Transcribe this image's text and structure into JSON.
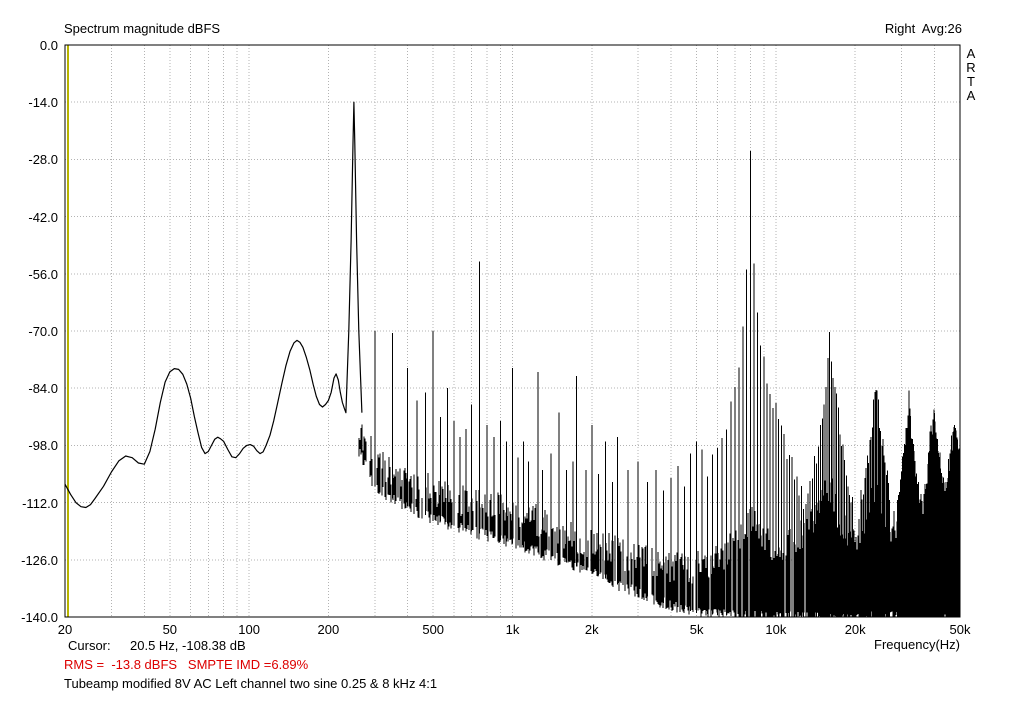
{
  "header": {
    "title": "Spectrum magnitude dBFS",
    "channel_avg": "Right  Avg:26"
  },
  "watermark": {
    "letters": [
      "A",
      "R",
      "T",
      "A"
    ]
  },
  "status": {
    "cursor_label": "Cursor:",
    "cursor_value": "20.5 Hz, -108.38 dB",
    "rms_line": "RMS =  -13.8 dBFS   SMPTE IMD =6.89%",
    "note": "Tubeamp modified 8V AC Left channel two sine 0.25 & 8 kHz 4:1",
    "freq_axis_label": "Frequency(Hz)"
  },
  "colors": {
    "accent_red": "#dd0000",
    "cursor_yellow": "#b8b400",
    "grid": "#b3b3b3",
    "trace": "#000000",
    "border": "#000000"
  },
  "chart_data": {
    "type": "line",
    "title": "Spectrum magnitude dBFS",
    "xlabel": "Frequency(Hz)",
    "ylabel": "dBFS",
    "x_scale": "log",
    "xlim": [
      20,
      50000
    ],
    "ylim": [
      -140,
      0
    ],
    "grid": true,
    "channel": "Right",
    "averages": 26,
    "cursor": {
      "freq_hz": 20.5,
      "level_db": -108.38
    },
    "rms_dbfs": -13.8,
    "smpte_imd_percent": 6.89,
    "y_ticks": [
      0,
      -14,
      -28,
      -42,
      -56,
      -70,
      -84,
      -98,
      -112,
      -126,
      -140
    ],
    "y_tick_labels": [
      "0.0",
      "-14.0",
      "-28.0",
      "-42.0",
      "-56.0",
      "-70.0",
      "-84.0",
      "-98.0",
      "-112.0",
      "-126.0",
      "-140.0"
    ],
    "x_ticks": [
      20,
      50,
      100,
      200,
      500,
      1000,
      2000,
      5000,
      10000,
      20000,
      50000
    ],
    "x_tick_labels": [
      "20",
      "50",
      "100",
      "200",
      "500",
      "1k",
      "2k",
      "5k",
      "10k",
      "20k",
      "50k"
    ],
    "main_tones": [
      [
        250,
        -14
      ],
      [
        8000,
        -26
      ]
    ],
    "low_freq_curve": [
      [
        20,
        -107.5
      ],
      [
        21,
        -110
      ],
      [
        22,
        -112
      ],
      [
        23,
        -113
      ],
      [
        24,
        -113.2
      ],
      [
        25,
        -112.5
      ],
      [
        26,
        -111
      ],
      [
        28,
        -108
      ],
      [
        30,
        -104.5
      ],
      [
        32,
        -101.8
      ],
      [
        34,
        -100.6
      ],
      [
        36,
        -101
      ],
      [
        38,
        -102.3
      ],
      [
        40,
        -102.6
      ],
      [
        42,
        -99.5
      ],
      [
        44,
        -94
      ],
      [
        46,
        -87.5
      ],
      [
        48,
        -82.5
      ],
      [
        50,
        -80
      ],
      [
        52,
        -79.2
      ],
      [
        54,
        -79.4
      ],
      [
        56,
        -80.6
      ],
      [
        58,
        -83
      ],
      [
        60,
        -86.5
      ],
      [
        62,
        -91
      ],
      [
        64,
        -95
      ],
      [
        66,
        -98.5
      ],
      [
        68,
        -100
      ],
      [
        70,
        -99.5
      ],
      [
        72,
        -98
      ],
      [
        74,
        -96.5
      ],
      [
        76,
        -96
      ],
      [
        78,
        -96.4
      ],
      [
        80,
        -97
      ],
      [
        83,
        -99
      ],
      [
        86,
        -100.8
      ],
      [
        89,
        -101
      ],
      [
        92,
        -100
      ],
      [
        95,
        -98.7
      ],
      [
        98,
        -98
      ],
      [
        101,
        -97.8
      ],
      [
        104,
        -98.2
      ],
      [
        107,
        -99.3
      ],
      [
        110,
        -100
      ],
      [
        113,
        -99.6
      ],
      [
        116,
        -98
      ],
      [
        120,
        -95.5
      ],
      [
        124,
        -92
      ],
      [
        128,
        -88
      ],
      [
        133,
        -83
      ],
      [
        138,
        -78.5
      ],
      [
        143,
        -75
      ],
      [
        148,
        -72.9
      ],
      [
        152,
        -72.3
      ],
      [
        156,
        -72.8
      ],
      [
        160,
        -74
      ],
      [
        165,
        -76.5
      ],
      [
        170,
        -79.5
      ],
      [
        175,
        -83
      ],
      [
        180,
        -86
      ],
      [
        185,
        -88
      ],
      [
        190,
        -88.6
      ],
      [
        195,
        -88
      ],
      [
        200,
        -87
      ],
      [
        205,
        -85
      ],
      [
        210,
        -81.5
      ],
      [
        214,
        -80.5
      ],
      [
        218,
        -82
      ],
      [
        222,
        -85
      ],
      [
        226,
        -87.5
      ],
      [
        230,
        -89
      ],
      [
        233,
        -90
      ],
      [
        239,
        -70
      ],
      [
        244,
        -48
      ],
      [
        248,
        -24
      ],
      [
        250,
        -14
      ],
      [
        252,
        -24
      ],
      [
        256,
        -48
      ],
      [
        261,
        -70
      ],
      [
        268,
        -90
      ]
    ],
    "spikes": [
      [
        300,
        -70
      ],
      [
        350,
        -70.5
      ],
      [
        400,
        -79
      ],
      [
        433,
        -87
      ],
      [
        467,
        -85
      ],
      [
        500,
        -70
      ],
      [
        533,
        -91
      ],
      [
        567,
        -84
      ],
      [
        600,
        -92
      ],
      [
        633,
        -96
      ],
      [
        667,
        -94
      ],
      [
        700,
        -88
      ],
      [
        750,
        -53
      ],
      [
        800,
        -93
      ],
      [
        850,
        -96
      ],
      [
        900,
        -92
      ],
      [
        950,
        -97
      ],
      [
        1000,
        -79
      ],
      [
        1050,
        -101
      ],
      [
        1100,
        -97
      ],
      [
        1150,
        -102
      ],
      [
        1250,
        -80
      ],
      [
        1300,
        -104
      ],
      [
        1400,
        -100
      ],
      [
        1500,
        -90
      ],
      [
        1600,
        -104
      ],
      [
        1700,
        -102
      ],
      [
        1750,
        -81
      ],
      [
        1900,
        -104
      ],
      [
        2000,
        -93
      ],
      [
        2125,
        -105
      ],
      [
        2250,
        -97
      ],
      [
        2400,
        -107
      ],
      [
        2500,
        -96
      ],
      [
        2750,
        -104
      ],
      [
        3000,
        -102
      ],
      [
        3250,
        -107
      ],
      [
        3500,
        -104
      ],
      [
        3750,
        -109
      ],
      [
        4000,
        -106
      ],
      [
        4250,
        -103
      ],
      [
        4500,
        -108
      ],
      [
        4750,
        -100
      ],
      [
        5000,
        -97
      ],
      [
        5250,
        -99
      ]
    ],
    "noise_floor_top": [
      [
        260,
        -93
      ],
      [
        300,
        -101
      ],
      [
        350,
        -105
      ],
      [
        400,
        -107
      ],
      [
        500,
        -109
      ],
      [
        600,
        -111
      ],
      [
        700,
        -112
      ],
      [
        800,
        -113
      ],
      [
        900,
        -113.5
      ],
      [
        1000,
        -114
      ],
      [
        1200,
        -116
      ],
      [
        1500,
        -119
      ],
      [
        2000,
        -122
      ],
      [
        2500,
        -124
      ],
      [
        3000,
        -126
      ],
      [
        4000,
        -128
      ],
      [
        5000,
        -128
      ],
      [
        6000,
        -126
      ],
      [
        7000,
        -122
      ],
      [
        8000,
        -116
      ],
      [
        9000,
        -121
      ],
      [
        10000,
        -123
      ],
      [
        11000,
        -122
      ],
      [
        12000,
        -121
      ],
      [
        13000,
        -119
      ],
      [
        14000,
        -116
      ],
      [
        15000,
        -112
      ],
      [
        16000,
        -108
      ],
      [
        17000,
        -114
      ],
      [
        18000,
        -118
      ],
      [
        19000,
        -120
      ],
      [
        20000,
        -121
      ],
      [
        21000,
        -119
      ],
      [
        22000,
        -116
      ],
      [
        23000,
        -112
      ],
      [
        24000,
        -110
      ],
      [
        25000,
        -112
      ],
      [
        26000,
        -115
      ],
      [
        27000,
        -118
      ],
      [
        28000,
        -118
      ],
      [
        29000,
        -116
      ],
      [
        30000,
        -113
      ],
      [
        31000,
        -110
      ],
      [
        32000,
        -108
      ],
      [
        33000,
        -111
      ],
      [
        34000,
        -114
      ],
      [
        35000,
        -116
      ],
      [
        36000,
        -115
      ],
      [
        37000,
        -113
      ],
      [
        38000,
        -110
      ],
      [
        39000,
        -108
      ],
      [
        40000,
        -107
      ],
      [
        41000,
        -109
      ],
      [
        42000,
        -111
      ],
      [
        43000,
        -112
      ],
      [
        44000,
        -111
      ],
      [
        45000,
        -109
      ],
      [
        46000,
        -107
      ],
      [
        47000,
        -106
      ],
      [
        48000,
        -106
      ],
      [
        50000,
        -106
      ]
    ],
    "noise_floor_bottom": [
      [
        260,
        -99
      ],
      [
        300,
        -108
      ],
      [
        350,
        -111
      ],
      [
        400,
        -113
      ],
      [
        500,
        -116
      ],
      [
        700,
        -119
      ],
      [
        1000,
        -122
      ],
      [
        1500,
        -126
      ],
      [
        2000,
        -129
      ],
      [
        2500,
        -132
      ],
      [
        3000,
        -134
      ],
      [
        3500,
        -136
      ],
      [
        4000,
        -137
      ],
      [
        4500,
        -138
      ],
      [
        5000,
        -139
      ],
      [
        6000,
        -139.5
      ],
      [
        8000,
        -140
      ],
      [
        50000,
        -140
      ]
    ],
    "combs": [
      {
        "spacing": 250,
        "span": [
          5500,
          12750
        ],
        "envelope": [
          [
            5500,
            -104
          ],
          [
            6000,
            -99
          ],
          [
            6500,
            -93
          ],
          [
            7000,
            -85
          ],
          [
            7250,
            -79
          ],
          [
            7500,
            -69
          ],
          [
            7750,
            -55
          ],
          [
            8000,
            -26
          ],
          [
            8250,
            -54
          ],
          [
            8500,
            -66
          ],
          [
            8750,
            -73
          ],
          [
            9000,
            -78
          ],
          [
            9250,
            -82
          ],
          [
            9500,
            -85
          ],
          [
            10000,
            -90
          ],
          [
            10500,
            -95
          ],
          [
            11000,
            -99
          ],
          [
            11500,
            -103
          ],
          [
            12000,
            -107
          ],
          [
            12500,
            -110
          ],
          [
            12750,
            -112
          ]
        ]
      },
      {
        "spacing": 250,
        "span": [
          13000,
          19500
        ],
        "envelope": [
          [
            13000,
            -111
          ],
          [
            13500,
            -107
          ],
          [
            14000,
            -103
          ],
          [
            14500,
            -98
          ],
          [
            15000,
            -91
          ],
          [
            15250,
            -87
          ],
          [
            15500,
            -82
          ],
          [
            15750,
            -76
          ],
          [
            16000,
            -70
          ],
          [
            16250,
            -75
          ],
          [
            16500,
            -80
          ],
          [
            16750,
            -84
          ],
          [
            17000,
            -87
          ],
          [
            17500,
            -93
          ],
          [
            18000,
            -99
          ],
          [
            18500,
            -104
          ],
          [
            19000,
            -108
          ],
          [
            19500,
            -111
          ]
        ]
      },
      {
        "spacing": 250,
        "span": [
          21000,
          27000
        ],
        "envelope": [
          [
            21000,
            -111
          ],
          [
            21500,
            -108
          ],
          [
            22000,
            -104
          ],
          [
            22500,
            -100
          ],
          [
            23000,
            -95
          ],
          [
            23500,
            -89
          ],
          [
            23750,
            -86
          ],
          [
            24000,
            -83
          ],
          [
            24250,
            -86
          ],
          [
            24500,
            -89
          ],
          [
            25000,
            -94
          ],
          [
            25500,
            -98
          ],
          [
            26000,
            -102
          ],
          [
            26500,
            -106
          ],
          [
            27000,
            -109
          ]
        ]
      },
      {
        "spacing": 250,
        "span": [
          29000,
          35500
        ],
        "envelope": [
          [
            29000,
            -111
          ],
          [
            30000,
            -105
          ],
          [
            30500,
            -101
          ],
          [
            31000,
            -97
          ],
          [
            31500,
            -92
          ],
          [
            31750,
            -89
          ],
          [
            32000,
            -87
          ],
          [
            32250,
            -90
          ],
          [
            32750,
            -95
          ],
          [
            33500,
            -100
          ],
          [
            34000,
            -104
          ],
          [
            34500,
            -107
          ],
          [
            35000,
            -110
          ],
          [
            35500,
            -112
          ]
        ]
      },
      {
        "spacing": 250,
        "span": [
          36500,
          43500
        ],
        "envelope": [
          [
            36500,
            -111
          ],
          [
            37000,
            -108
          ],
          [
            37500,
            -105
          ],
          [
            38000,
            -101
          ],
          [
            38500,
            -97
          ],
          [
            39000,
            -94
          ],
          [
            39500,
            -92
          ],
          [
            40000,
            -90
          ],
          [
            40500,
            -93
          ],
          [
            41000,
            -96
          ],
          [
            41500,
            -99
          ],
          [
            42000,
            -102
          ],
          [
            43000,
            -107
          ],
          [
            43500,
            -109
          ]
        ]
      },
      {
        "spacing": 250,
        "span": [
          44500,
          50000
        ],
        "envelope": [
          [
            44500,
            -108
          ],
          [
            45000,
            -105
          ],
          [
            45500,
            -102
          ],
          [
            46000,
            -100
          ],
          [
            46500,
            -98
          ],
          [
            47000,
            -96
          ],
          [
            47500,
            -95
          ],
          [
            48000,
            -95
          ],
          [
            48500,
            -96
          ],
          [
            49000,
            -98
          ],
          [
            49500,
            -100
          ],
          [
            50000,
            -101
          ]
        ]
      }
    ]
  }
}
